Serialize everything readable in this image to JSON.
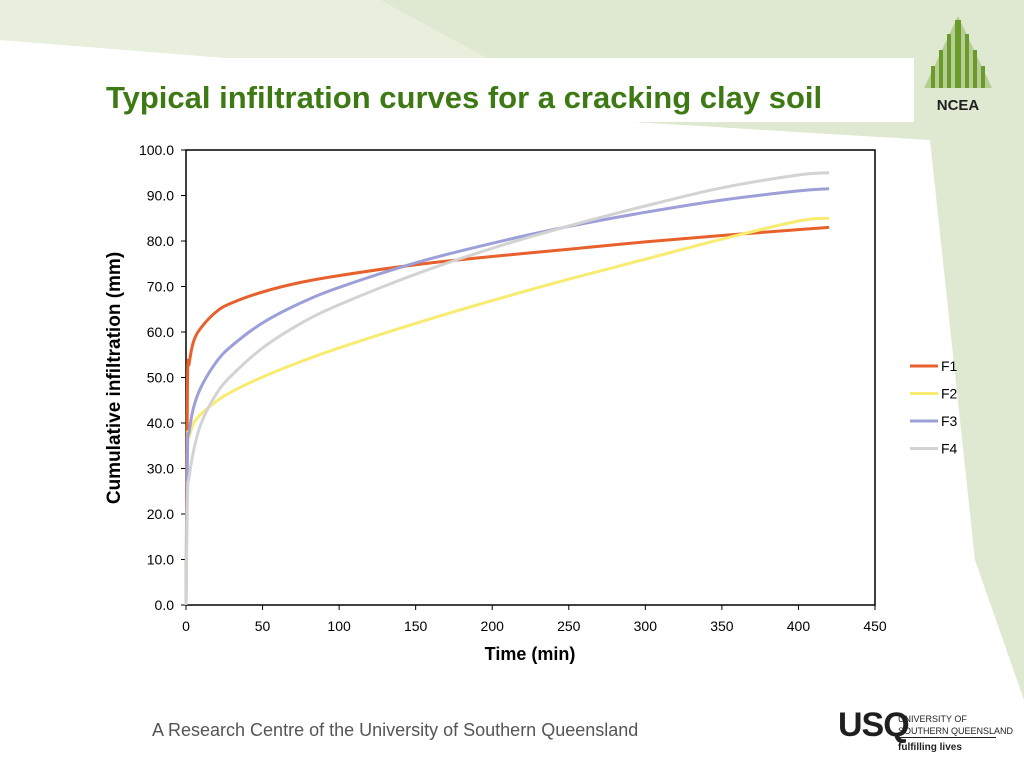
{
  "slide": {
    "title": "Typical infiltration curves for a cracking clay soil",
    "footer_text": "A Research Centre of the University of Southern Queensland",
    "logo_text": "NCEA",
    "usq": {
      "mark": "USQ",
      "name_line1": "UNIVERSITY OF",
      "name_line2": "SOUTHERN QUEENSLAND",
      "tagline": "fulfilling lives"
    },
    "colors": {
      "title": "#3e7a13",
      "background_band": "#dfe8d0",
      "logo_green": "#6b9b2a"
    }
  },
  "chart_data": {
    "type": "line",
    "title": "",
    "xlabel": "Time (min)",
    "ylabel": "Cumulative infiltration (mm)",
    "xlim": [
      0,
      450
    ],
    "ylim": [
      0,
      100
    ],
    "x_ticks": [
      0,
      50,
      100,
      150,
      200,
      250,
      300,
      350,
      400,
      450
    ],
    "y_ticks": [
      0,
      10,
      20,
      30,
      40,
      50,
      60,
      70,
      80,
      90,
      100
    ],
    "y_tick_labels": [
      "0.0",
      "10.0",
      "20.0",
      "30.0",
      "40.0",
      "50.0",
      "60.0",
      "70.0",
      "80.0",
      "90.0",
      "100.0"
    ],
    "grid": false,
    "legend_position": "right",
    "series": [
      {
        "name": "F1",
        "color": "#e8612c",
        "x": [
          0,
          1,
          2,
          5,
          10,
          20,
          30,
          50,
          75,
          100,
          150,
          200,
          250,
          300,
          350,
          400,
          420
        ],
        "y": [
          0,
          49,
          53,
          58,
          61,
          64.5,
          66.4,
          68.8,
          70.9,
          72.4,
          74.8,
          76.6,
          78.2,
          79.8,
          81.2,
          82.5,
          83
        ]
      },
      {
        "name": "F2",
        "color": "#f8ec70",
        "x": [
          0,
          1,
          2,
          5,
          10,
          20,
          30,
          50,
          75,
          100,
          150,
          200,
          250,
          300,
          350,
          400,
          420
        ],
        "y": [
          0,
          35,
          37,
          40,
          42,
          44.8,
          46.9,
          50.1,
          53.5,
          56.5,
          61.9,
          66.9,
          71.6,
          76,
          80.4,
          84.4,
          85
        ]
      },
      {
        "name": "F3",
        "color": "#9d9fd8",
        "x": [
          0,
          1,
          2,
          5,
          10,
          20,
          30,
          50,
          75,
          100,
          150,
          200,
          250,
          300,
          350,
          400,
          420
        ],
        "y": [
          0,
          34,
          38,
          43.5,
          48,
          53.5,
          57,
          62,
          66.4,
          69.8,
          75.2,
          79.5,
          83.2,
          86.3,
          89,
          91,
          91.5
        ]
      },
      {
        "name": "F4",
        "color": "#d3d3d3",
        "x": [
          0,
          1,
          2,
          5,
          10,
          20,
          30,
          50,
          75,
          100,
          150,
          200,
          250,
          300,
          350,
          400,
          420
        ],
        "y": [
          0,
          24,
          28,
          34,
          40,
          46.5,
          50.5,
          56.5,
          61.9,
          66,
          72.7,
          78.4,
          83.3,
          87.7,
          91.7,
          94.5,
          95
        ]
      }
    ]
  }
}
